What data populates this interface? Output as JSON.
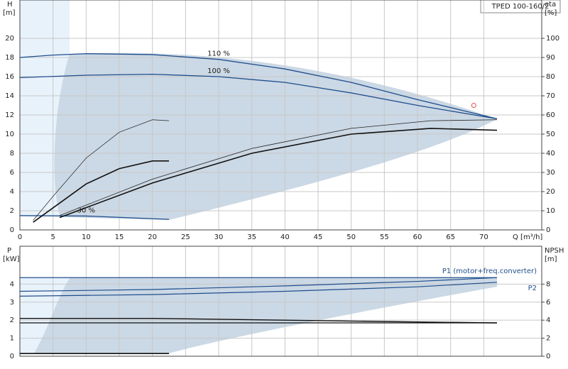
{
  "chart_data": [
    {
      "type": "line",
      "title": "TPED 100-160/2",
      "xlabel": "Q [m³/h]",
      "ylabel": "H",
      "yunit": "[m]",
      "y2label": "eta",
      "y2unit": "[%]",
      "xlim": [
        0,
        78.75
      ],
      "xticks": [
        0,
        5,
        10,
        15,
        20,
        25,
        30,
        35,
        40,
        45,
        50,
        55,
        60,
        65,
        70
      ],
      "ylim": [
        0,
        24
      ],
      "yticks": [
        0,
        2,
        4,
        6,
        8,
        10,
        12,
        14,
        16,
        18,
        20
      ],
      "y2lim": [
        0,
        120
      ],
      "y2ticks": [
        0,
        10,
        20,
        30,
        40,
        50,
        60,
        70,
        80,
        90,
        100
      ],
      "grid": true,
      "series": [
        {
          "label": "110 %",
          "color": "#1f4e8c",
          "line_width": 1.3,
          "x": [
            0,
            5,
            10,
            20,
            30,
            40,
            50,
            60,
            72
          ],
          "values": [
            18,
            18.25,
            18.4,
            18.3,
            17.8,
            16.8,
            15.4,
            13.6,
            11.6
          ]
        },
        {
          "label": "100 %",
          "color": "#1f4e8c",
          "line_width": 1.3,
          "x": [
            0,
            10,
            20,
            30,
            40,
            50,
            60,
            72
          ],
          "values": [
            15.9,
            16.15,
            16.25,
            16,
            15.4,
            14.3,
            13,
            11.6
          ]
        },
        {
          "label": "30 %",
          "color": "#1f4e8c",
          "line_width": 1.3,
          "x": [
            0,
            10,
            22.5
          ],
          "values": [
            1.5,
            1.45,
            1.1
          ]
        },
        {
          "color": "#222222",
          "line_width": 0.7,
          "axis": "y2",
          "x": [
            2,
            5,
            10,
            15,
            20,
            22.5
          ],
          "values": [
            5,
            17.5,
            37.5,
            51,
            57.5,
            57
          ]
        },
        {
          "color": "#111111",
          "line_width": 1.6,
          "axis": "y2",
          "x": [
            2,
            5,
            10,
            15,
            20,
            22.5
          ],
          "values": [
            4,
            11.5,
            24,
            32,
            36,
            36
          ]
        },
        {
          "color": "#222222",
          "line_width": 0.8,
          "axis": "y2",
          "x": [
            6,
            20,
            35,
            50,
            62,
            72
          ],
          "values": [
            7.5,
            26.5,
            42.5,
            53,
            57,
            57.5
          ]
        },
        {
          "color": "#111111",
          "line_width": 1.6,
          "axis": "y2",
          "x": [
            6,
            20,
            35,
            50,
            62,
            72
          ],
          "values": [
            6.5,
            24.5,
            40,
            50,
            53,
            52
          ]
        }
      ],
      "duty_point": {
        "x": 68.5,
        "y": 13,
        "color": "#e05050"
      }
    },
    {
      "type": "line",
      "ylabel": "P",
      "yunit": "[kW]",
      "y2label": "NPSH",
      "y2unit": "[m]",
      "xlim": [
        0,
        78.75
      ],
      "xticks": [
        0,
        5,
        10,
        15,
        20,
        25,
        30,
        35,
        40,
        45,
        50,
        55,
        60,
        65,
        70
      ],
      "ylim": [
        0,
        6.1
      ],
      "yticks": [
        0,
        1,
        2,
        3,
        4
      ],
      "y2lim": [
        0,
        12.2
      ],
      "y2ticks": [
        0,
        2,
        4,
        6,
        8
      ],
      "grid": true,
      "series": [
        {
          "color": "#1f4e8c",
          "line_width": 1.2,
          "x": [
            0,
            72
          ],
          "values": [
            4.36,
            4.36
          ]
        },
        {
          "name": "P1 (motor+freq.converter)",
          "color": "#1f4e8c",
          "line_width": 1.2,
          "x": [
            0,
            20,
            40,
            60,
            72
          ],
          "values": [
            3.6,
            3.7,
            3.9,
            4.15,
            4.36
          ]
        },
        {
          "name": "P2",
          "color": "#1f4e8c",
          "line_width": 1.2,
          "x": [
            0,
            20,
            40,
            60,
            72
          ],
          "values": [
            3.33,
            3.42,
            3.6,
            3.85,
            4.1
          ]
        },
        {
          "color": "#111111",
          "line_width": 1.4,
          "axis": "y2",
          "x": [
            0,
            20,
            40,
            60,
            72
          ],
          "values": [
            4.2,
            4.2,
            4,
            3.8,
            3.7
          ]
        },
        {
          "color": "#111111",
          "line_width": 1.2,
          "axis": "y2",
          "x": [
            0,
            72
          ],
          "values": [
            3.7,
            3.7
          ]
        },
        {
          "color": "#111111",
          "line_width": 1.6,
          "axis": "y2",
          "x": [
            0,
            22.5
          ],
          "values": [
            0.3,
            0.3
          ]
        }
      ]
    }
  ]
}
